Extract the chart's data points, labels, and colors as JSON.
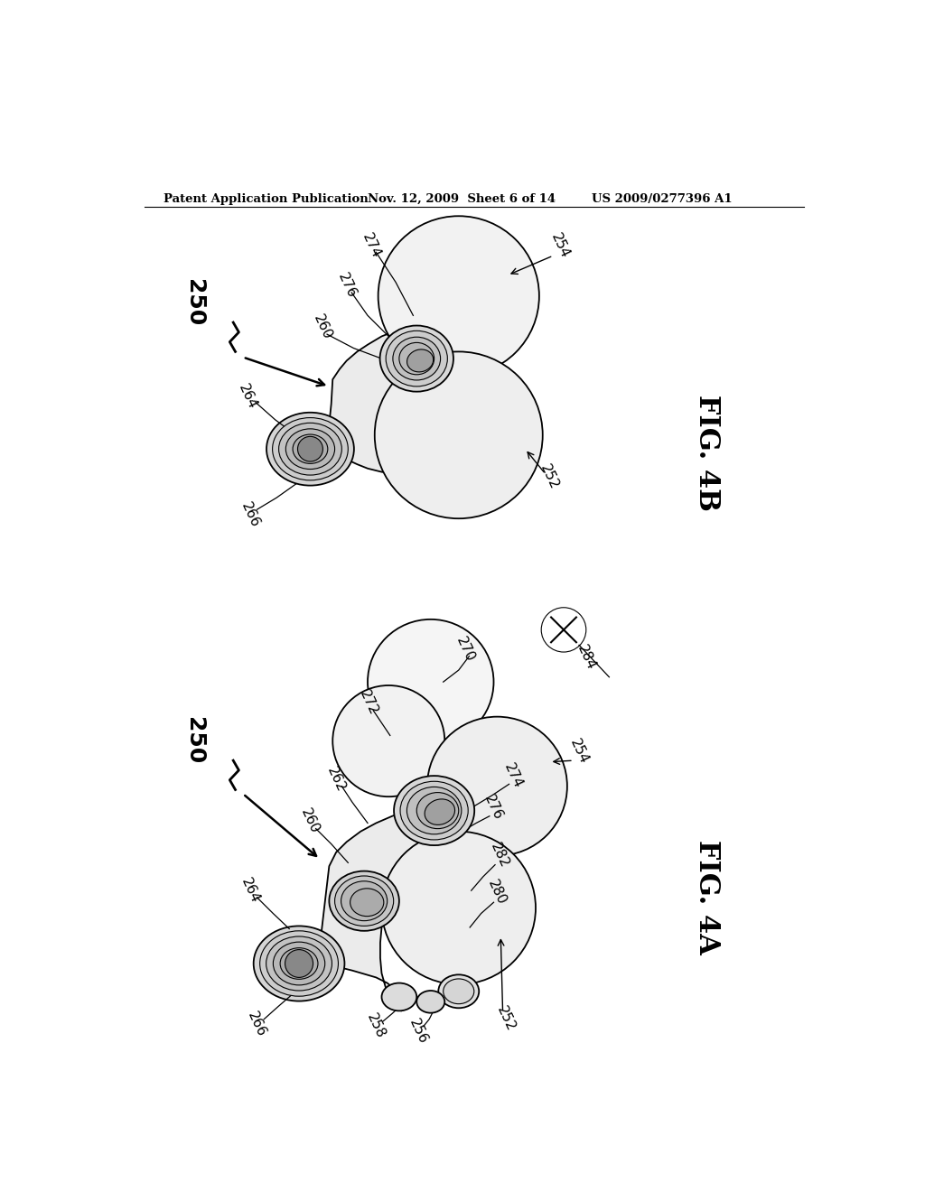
{
  "bg_color": "#ffffff",
  "header_left": "Patent Application Publication",
  "header_center": "Nov. 12, 2009  Sheet 6 of 14",
  "header_right": "US 2009/0277396 A1",
  "fig4b_label": "FIG. 4B",
  "fig4a_label": "FIG. 4A",
  "line_color": "#000000",
  "fill_light": "#f0f0f0",
  "fill_mid": "#e0e0e0",
  "fill_dark": "#c8c8c8",
  "fill_darker": "#aaaaaa"
}
